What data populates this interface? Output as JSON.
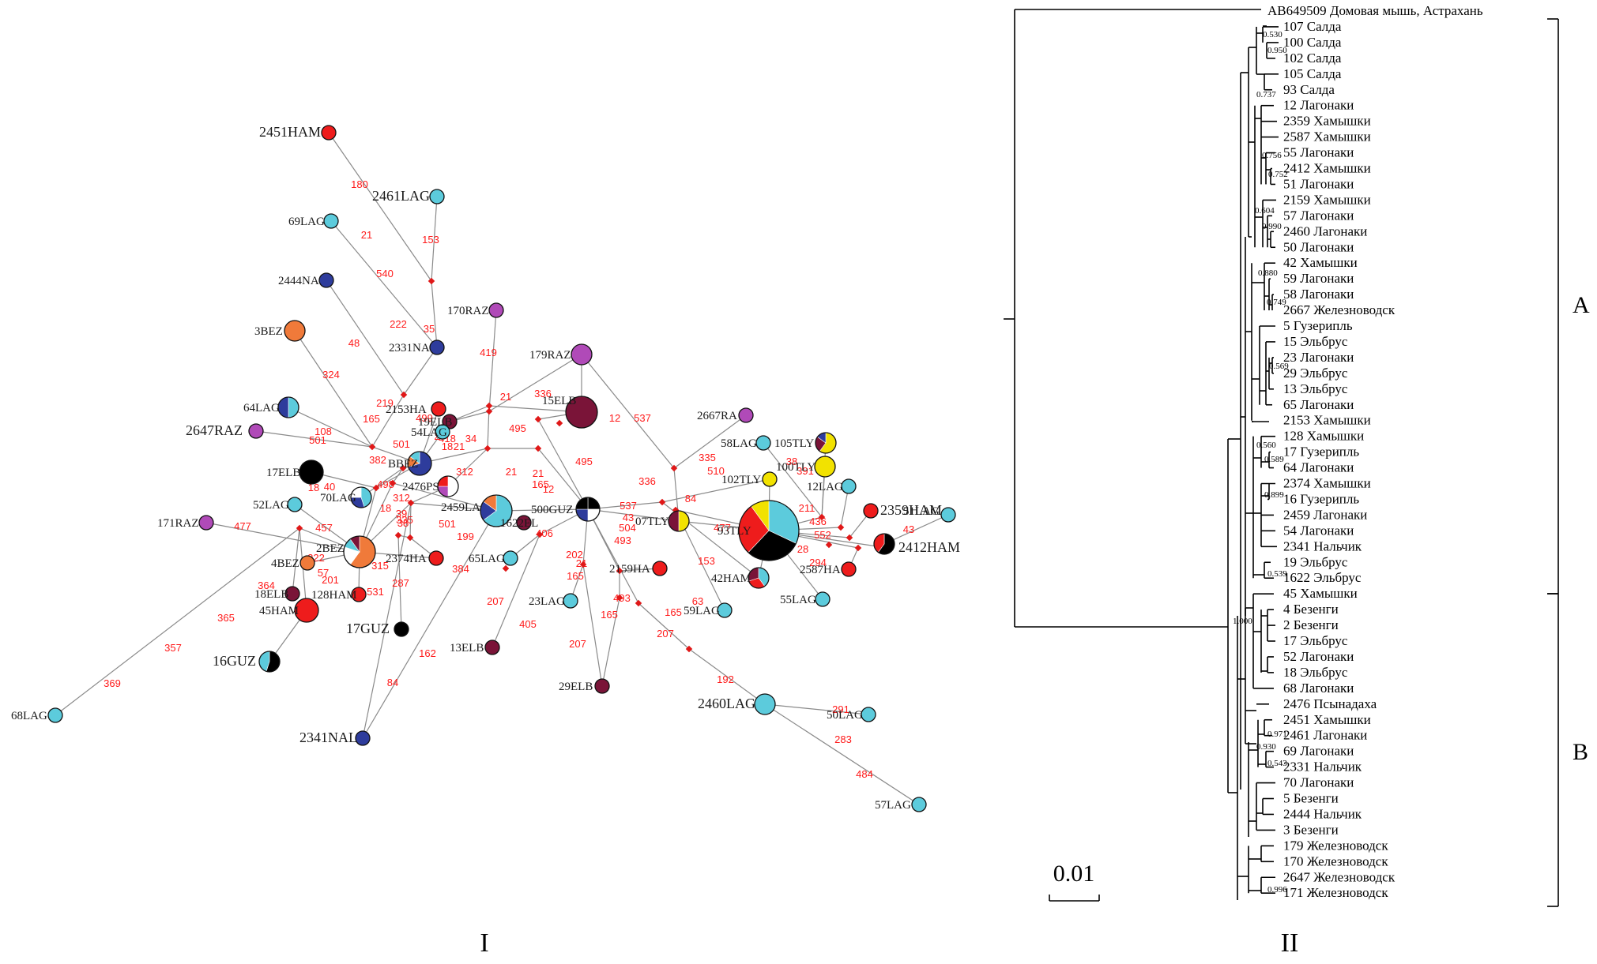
{
  "colors": {
    "HAM": "#ee1c1c",
    "LAG": "#5ccbdc",
    "NAL": "#2e3c9c",
    "RAZ": "#b04ab8",
    "ELB": "#7a1438",
    "BEZ": "#f07a3a",
    "TLY": "#f2e200",
    "GUZ": "#000000",
    "PS": "#ffffff",
    "junction": "#e01818"
  },
  "panels": {
    "left": "I",
    "right": "II"
  },
  "network": {
    "nodes": [
      {
        "id": "2451HAM",
        "label": "2451HAM",
        "big": true,
        "size": 1,
        "slices": [
          [
            "HAM",
            1
          ]
        ]
      },
      {
        "id": "2461LAG",
        "label": "2461LAG",
        "big": true,
        "size": 1,
        "slices": [
          [
            "LAG",
            1
          ]
        ]
      },
      {
        "id": "69LAG",
        "label": "69LAG",
        "size": 1,
        "slices": [
          [
            "LAG",
            1
          ]
        ]
      },
      {
        "id": "2444NA",
        "label": "2444NA",
        "size": 1,
        "slices": [
          [
            "NAL",
            1
          ]
        ]
      },
      {
        "id": "170RAZ",
        "label": "170RAZ",
        "size": 1,
        "slices": [
          [
            "RAZ",
            1
          ]
        ]
      },
      {
        "id": "3BEZ",
        "label": "3BEZ",
        "size": 2,
        "slices": [
          [
            "BEZ",
            1
          ]
        ]
      },
      {
        "id": "2331NA",
        "label": "2331NA",
        "size": 1,
        "slices": [
          [
            "NAL",
            1
          ]
        ]
      },
      {
        "id": "179RAZ",
        "label": "179RAZ",
        "size": 2,
        "slices": [
          [
            "RAZ",
            1
          ]
        ]
      },
      {
        "id": "15ELB",
        "label": "15ELB",
        "size": 4,
        "slices": [
          [
            "ELB",
            1
          ]
        ]
      },
      {
        "id": "64LAG",
        "label": "64LAG",
        "size": 2,
        "slices": [
          [
            "LAG",
            0.5
          ],
          [
            "NAL",
            0.5
          ]
        ]
      },
      {
        "id": "2647RAZ",
        "label": "2647RAZ",
        "big": true,
        "size": 1,
        "slices": [
          [
            "RAZ",
            1
          ]
        ]
      },
      {
        "id": "2153HA",
        "label": "2153HA",
        "size": 1,
        "slices": [
          [
            "HAM",
            1
          ]
        ]
      },
      {
        "id": "19ELB",
        "label": "19ELB",
        "size": 1,
        "slices": [
          [
            "ELB",
            1
          ]
        ]
      },
      {
        "id": "54LAG",
        "label": "54LAG",
        "size": 1,
        "slices": [
          [
            "LAG",
            1
          ]
        ]
      },
      {
        "id": "2667RA",
        "label": "2667RA",
        "size": 1,
        "slices": [
          [
            "RAZ",
            1
          ]
        ]
      },
      {
        "id": "58LAG",
        "label": "58LAG",
        "size": 1,
        "slices": [
          [
            "LAG",
            1
          ]
        ]
      },
      {
        "id": "105TLY",
        "label": "105TLY",
        "size": 2,
        "slices": [
          [
            "TLY",
            0.6
          ],
          [
            "ELB",
            0.25
          ],
          [
            "NAL",
            0.15
          ]
        ]
      },
      {
        "id": "100TLY",
        "label": "100TLY",
        "size": 2,
        "slices": [
          [
            "TLY",
            1
          ]
        ]
      },
      {
        "id": "17ELB",
        "label": "17ELB",
        "size": 3,
        "slices": [
          [
            "GUZ",
            1
          ]
        ]
      },
      {
        "id": "BBEZ",
        "label": "BBEZ",
        "size": 3,
        "slices": [
          [
            "NAL",
            0.7
          ],
          [
            "BEZ",
            0.15
          ],
          [
            "LAG",
            0.15
          ]
        ]
      },
      {
        "id": "2476PS",
        "label": "2476PS",
        "size": 2,
        "slices": [
          [
            "PS",
            0.5
          ],
          [
            "RAZ",
            0.25
          ],
          [
            "HAM",
            0.25
          ]
        ]
      },
      {
        "id": "102TLY",
        "label": "102TLY",
        "size": 1,
        "slices": [
          [
            "TLY",
            1
          ]
        ]
      },
      {
        "id": "12LAG",
        "label": "12LAG",
        "size": 1,
        "slices": [
          [
            "LAG",
            1
          ]
        ]
      },
      {
        "id": "52LAG",
        "label": "52LAG",
        "size": 1,
        "slices": [
          [
            "LAG",
            1
          ]
        ]
      },
      {
        "id": "70LAG",
        "label": "70LAG",
        "size": 2,
        "slices": [
          [
            "LAG",
            0.45
          ],
          [
            "NAL",
            0.3
          ],
          [
            "PS",
            0.25
          ]
        ]
      },
      {
        "id": "2459LA",
        "label": "2459LA",
        "size": 4,
        "slices": [
          [
            "LAG",
            0.65
          ],
          [
            "NAL",
            0.2
          ],
          [
            "BEZ",
            0.15
          ]
        ]
      },
      {
        "id": "1622EL",
        "label": "1622EL",
        "size": 1,
        "slices": [
          [
            "ELB",
            1
          ]
        ]
      },
      {
        "id": "500GUZ",
        "label": "500GUZ",
        "size": 3,
        "slices": [
          [
            "GUZ",
            0.25
          ],
          [
            "PS",
            0.25
          ],
          [
            "NAL",
            0.25
          ],
          [
            "GUZ",
            0.25
          ]
        ]
      },
      {
        "id": "07TLY",
        "label": "07TLY",
        "size": 2,
        "slices": [
          [
            "TLY",
            0.5
          ],
          [
            "ELB",
            0.5
          ]
        ]
      },
      {
        "id": "93TLY",
        "label": "93TLY",
        "size": 7,
        "slices": [
          [
            "LAG",
            0.32
          ],
          [
            "GUZ",
            0.3
          ],
          [
            "HAM",
            0.28
          ],
          [
            "TLY",
            0.1
          ]
        ]
      },
      {
        "id": "2359HAM",
        "label": "2359HAM",
        "big": true,
        "size": 1,
        "slices": [
          [
            "HAM",
            1
          ]
        ]
      },
      {
        "id": "51LAG",
        "label": "51LAG",
        "size": 1,
        "slices": [
          [
            "LAG",
            1
          ]
        ]
      },
      {
        "id": "2412HAM",
        "label": "2412HAM",
        "big": true,
        "size": 2,
        "slices": [
          [
            "GUZ",
            0.6
          ],
          [
            "HAM",
            0.4
          ]
        ]
      },
      {
        "id": "171RAZ",
        "label": "171RAZ",
        "size": 1,
        "slices": [
          [
            "RAZ",
            1
          ]
        ]
      },
      {
        "id": "2BEZ",
        "label": "2BEZ",
        "size": 4,
        "slices": [
          [
            "BEZ",
            0.6
          ],
          [
            "PS",
            0.2
          ],
          [
            "LAG",
            0.1
          ],
          [
            "ELB",
            0.1
          ]
        ]
      },
      {
        "id": "4BEZ",
        "label": "4BEZ",
        "size": 1,
        "slices": [
          [
            "BEZ",
            1
          ]
        ]
      },
      {
        "id": "2374HA",
        "label": "2374HA",
        "size": 1,
        "slices": [
          [
            "HAM",
            1
          ]
        ]
      },
      {
        "id": "65LAG",
        "label": "65LAG",
        "size": 1,
        "slices": [
          [
            "LAG",
            1
          ]
        ]
      },
      {
        "id": "2159HA",
        "label": "2159HA",
        "size": 1,
        "slices": [
          [
            "HAM",
            1
          ]
        ]
      },
      {
        "id": "42HAM",
        "label": "42HAM",
        "size": 2,
        "slices": [
          [
            "LAG",
            0.4
          ],
          [
            "HAM",
            0.3
          ],
          [
            "ELB",
            0.3
          ]
        ]
      },
      {
        "id": "2587HA",
        "label": "2587HA",
        "size": 1,
        "slices": [
          [
            "HAM",
            1
          ]
        ]
      },
      {
        "id": "18ELB",
        "label": "18ELB",
        "size": 1,
        "slices": [
          [
            "ELB",
            1
          ]
        ]
      },
      {
        "id": "128HAM",
        "label": "128HAM",
        "size": 1,
        "slices": [
          [
            "HAM",
            1
          ]
        ]
      },
      {
        "id": "45HAM",
        "label": "45HAM",
        "size": 3,
        "slices": [
          [
            "HAM",
            1
          ]
        ]
      },
      {
        "id": "17GUZ",
        "label": "17GUZ",
        "big": true,
        "size": 1,
        "slices": [
          [
            "GUZ",
            1
          ]
        ]
      },
      {
        "id": "23LAG",
        "label": "23LAG",
        "size": 1,
        "slices": [
          [
            "LAG",
            1
          ]
        ]
      },
      {
        "id": "59LAG",
        "label": "59LAG",
        "size": 1,
        "slices": [
          [
            "LAG",
            1
          ]
        ]
      },
      {
        "id": "55LAG",
        "label": "55LAG",
        "size": 1,
        "slices": [
          [
            "LAG",
            1
          ]
        ]
      },
      {
        "id": "16GUZ",
        "label": "16GUZ",
        "big": true,
        "size": 2,
        "slices": [
          [
            "GUZ",
            0.55
          ],
          [
            "LAG",
            0.45
          ]
        ]
      },
      {
        "id": "13ELB",
        "label": "13ELB",
        "size": 1,
        "slices": [
          [
            "ELB",
            1
          ]
        ]
      },
      {
        "id": "29ELB",
        "label": "29ELB",
        "size": 1,
        "slices": [
          [
            "ELB",
            1
          ]
        ]
      },
      {
        "id": "68LAG",
        "label": "68LAG",
        "size": 1,
        "slices": [
          [
            "LAG",
            1
          ]
        ]
      },
      {
        "id": "2460LAG",
        "label": "2460LAG",
        "big": true,
        "size": 2,
        "slices": [
          [
            "LAG",
            1
          ]
        ]
      },
      {
        "id": "50LAG",
        "label": "50LAG",
        "size": 1,
        "slices": [
          [
            "LAG",
            1
          ]
        ]
      },
      {
        "id": "2341NAL",
        "label": "2341NAL",
        "big": true,
        "size": 1,
        "slices": [
          [
            "NAL",
            1
          ]
        ]
      },
      {
        "id": "57LAG",
        "label": "57LAG",
        "size": 1,
        "slices": [
          [
            "LAG",
            1
          ]
        ]
      }
    ],
    "mutations": [
      "180",
      "153",
      "21",
      "540",
      "222",
      "35",
      "48",
      "419",
      "324",
      "219",
      "165",
      "499",
      "21",
      "336",
      "495",
      "12",
      "537",
      "495",
      "108",
      "501",
      "501",
      "2",
      "418",
      "34",
      "18",
      "21",
      "312",
      "21",
      "21",
      "165",
      "12",
      "336",
      "335",
      "510",
      "38",
      "391",
      "18",
      "382",
      "498",
      "312",
      "18",
      "39",
      "38",
      "477",
      "457",
      "335",
      "501",
      "199",
      "406",
      "537",
      "43",
      "504",
      "493",
      "84",
      "477",
      "211",
      "436",
      "552",
      "28",
      "294",
      "43",
      "222",
      "57",
      "201",
      "364",
      "315",
      "531",
      "287",
      "384",
      "207",
      "202",
      "21",
      "165",
      "153",
      "63",
      "405",
      "207",
      "165",
      "207",
      "493",
      "165",
      "192",
      "365",
      "357",
      "369",
      "162",
      "84",
      "291",
      "283",
      "484",
      "40"
    ]
  },
  "tree": {
    "scale_label": "0.01",
    "clades": [
      "A",
      "B"
    ],
    "taxa": [
      "AB649509 Домовая мышь, Астрахань",
      "107 Салда",
      "100 Салда",
      "102 Салда",
      "105 Салда",
      "93 Салда",
      "12 Лагонаки",
      "2359 Хамышки",
      "2587 Хамышки",
      "55 Лагонаки",
      "2412 Хамышки",
      "51 Лагонаки",
      "2159 Хамышки",
      "57 Лагонаки",
      "2460 Лагонаки",
      "50 Лагонаки",
      "42 Хамышки",
      "59 Лагонаки",
      "58 Лагонаки",
      "2667 Железноводск",
      "5 Гузерипль",
      "15 Эльбрус",
      "23 Лагонаки",
      "29 Эльбрус",
      "13 Эльбрус",
      "65 Лагонаки",
      "2153 Хамышки",
      "128 Хамышки",
      "17 Гузерипль",
      "64 Лагонаки",
      "2374 Хамышки",
      "16 Гузерипль",
      "2459 Лагонаки",
      "54 Лагонаки",
      "2341 Нальчик",
      "19 Эльбрус",
      "1622 Эльбрус",
      "45 Хамышки",
      "4 Безенги",
      "2 Безенги",
      "17 Эльбрус",
      "52 Лагонаки",
      "18 Эльбрус",
      "68 Лагонаки",
      "2476 Псынадаха",
      "2451 Хамышки",
      "2461 Лагонаки",
      "69 Лагонаки",
      "2331 Нальчик",
      "70 Лагонаки",
      "5 Безенги",
      "2444 Нальчик",
      "3 Безенги",
      "179 Железноводск",
      "170 Железноводск",
      "2647 Железноводск",
      "171 Железноводск"
    ],
    "supports": [
      "0.530",
      "0.950",
      "0.737",
      "0.756",
      "0.752",
      "0.604",
      "0.990",
      "0.880",
      "0.749",
      "0.569",
      "0.560",
      "0.589",
      "0.899",
      "0.539",
      "1.000",
      "0.971",
      "0.930",
      "0.543",
      "0.996"
    ]
  }
}
